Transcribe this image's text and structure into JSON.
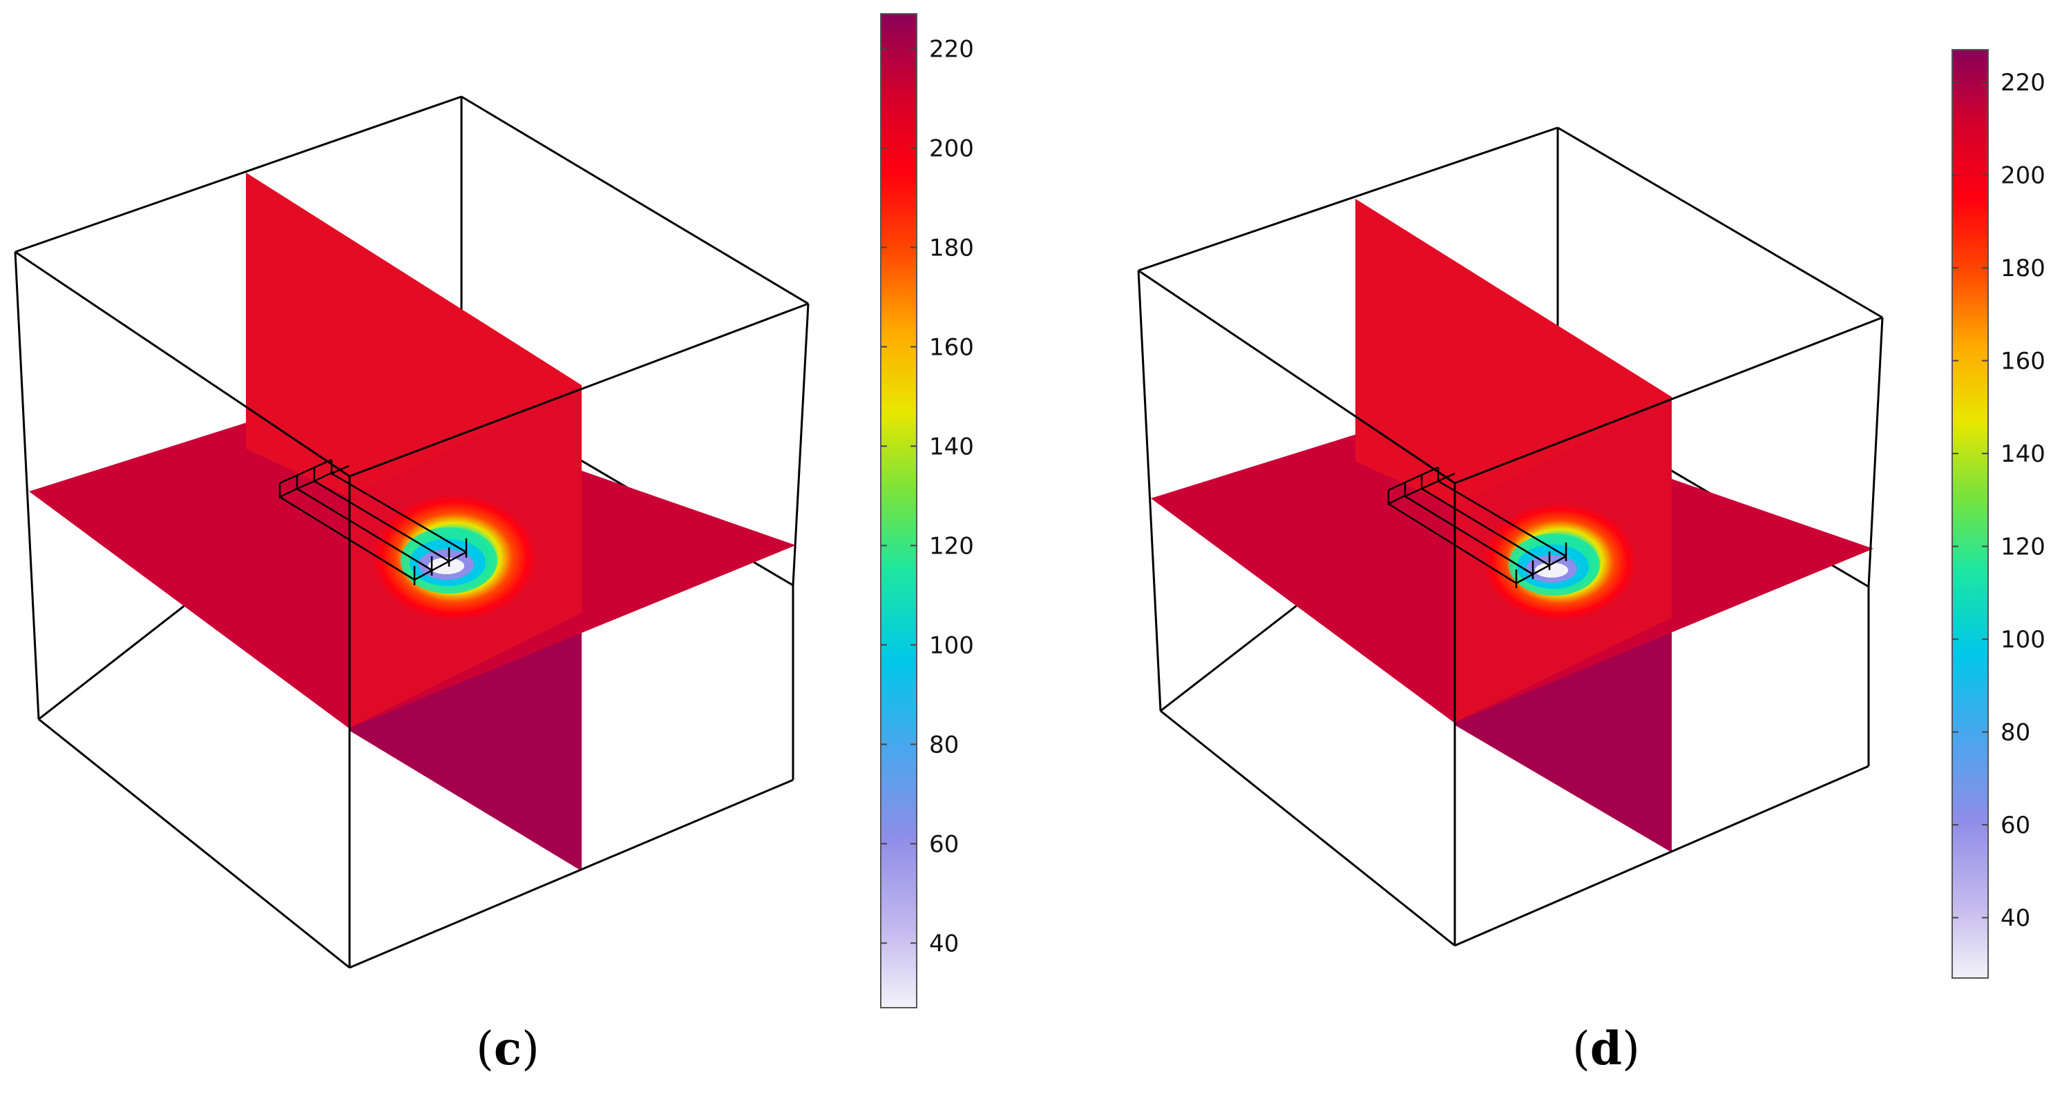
{
  "panels": [
    {
      "id": "c",
      "caption_open": "(",
      "caption_letter": "c",
      "caption_close": ")",
      "colorbar": {
        "min": 27,
        "max": 227,
        "ticks": [
          40,
          60,
          80,
          100,
          120,
          140,
          160,
          180,
          200,
          220
        ]
      },
      "slice_values": {
        "top_min": 200,
        "mid": 210,
        "bottom_max": 222,
        "hotspot_min": 30
      }
    },
    {
      "id": "d",
      "caption_open": "(",
      "caption_letter": "d",
      "caption_close": ")",
      "colorbar": {
        "min": 27,
        "max": 227,
        "ticks": [
          40,
          60,
          80,
          100,
          120,
          140,
          160,
          180,
          200,
          220
        ]
      },
      "slice_values": {
        "top_min": 200,
        "mid": 210,
        "bottom_max": 222,
        "hotspot_min": 30
      }
    }
  ],
  "colormap": {
    "name": "rainbow-light",
    "stops": [
      "#f2f2f8",
      "#c3b8ee",
      "#8f8de8",
      "#4aa6ee",
      "#00c8e8",
      "#1ee6a0",
      "#7ae33a",
      "#e9e600",
      "#ffab00",
      "#ff4a00",
      "#ff0010",
      "#d2002c",
      "#8a0058"
    ]
  }
}
